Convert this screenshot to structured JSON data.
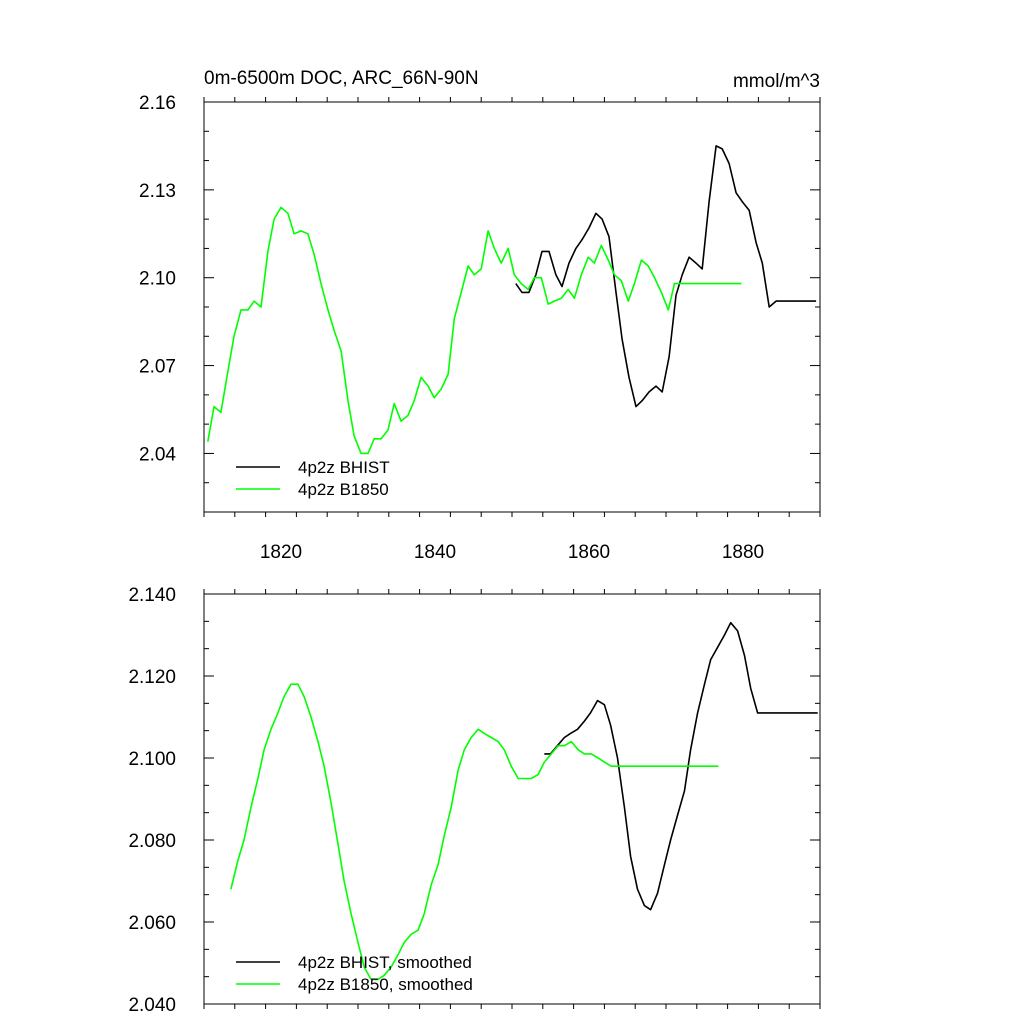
{
  "chart_data": [
    {
      "type": "line",
      "title": "0m-6500m DOC, ARC_66N-90N",
      "units": "mmol/m^3",
      "xlim": [
        1810,
        1890
      ],
      "ylim": [
        2.02,
        2.16
      ],
      "yticks": [
        2.04,
        2.07,
        2.1,
        2.13,
        2.16
      ],
      "ytick_labels": [
        "2.04",
        "2.07",
        "2.10",
        "2.13",
        "2.16"
      ],
      "xticks": [
        1820,
        1840,
        1860,
        1880
      ],
      "xtick_labels": [
        "1820",
        "1840",
        "1860",
        "1880"
      ],
      "grid": false,
      "legend_position": "bottom-left",
      "series": [
        {
          "name": "4p2z BHIST",
          "color": "#000000",
          "x": [
            1850.5,
            1851.3,
            1852.2,
            1853.1,
            1853.9,
            1854.8,
            1855.7,
            1856.5,
            1857.4,
            1858.3,
            1859.1,
            1860.0,
            1860.9,
            1861.7,
            1862.6,
            1863.5,
            1864.3,
            1865.2,
            1866.1,
            1866.9,
            1867.8,
            1868.7,
            1869.5,
            1870.4,
            1871.3,
            1872.1,
            1873.0,
            1873.9,
            1874.7,
            1875.6,
            1876.5,
            1877.3,
            1878.2,
            1879.1,
            1879.9,
            1880.8,
            1881.7,
            1882.5,
            1883.4,
            1884.3,
            1885.1,
            1886.0,
            1886.9,
            1887.7,
            1888.6,
            1889.5
          ],
          "y": [
            2.098,
            2.095,
            2.095,
            2.101,
            2.109,
            2.109,
            2.101,
            2.097,
            2.105,
            2.11,
            2.113,
            2.117,
            2.122,
            2.12,
            2.114,
            2.095,
            2.079,
            2.066,
            2.056,
            2.058,
            2.061,
            2.063,
            2.061,
            2.073,
            2.094,
            2.101,
            2.107,
            2.105,
            2.103,
            2.126,
            2.145,
            2.144,
            2.139,
            2.129,
            2.126,
            2.123,
            2.112,
            2.105,
            2.09,
            2.092,
            2.092,
            2.092,
            2.092,
            2.092,
            2.092,
            2.092
          ]
        },
        {
          "name": "4p2z B1850",
          "color": "#00ff00",
          "x": [
            1810.5,
            1811.3,
            1812.2,
            1813.1,
            1813.9,
            1814.8,
            1815.7,
            1816.5,
            1817.4,
            1818.3,
            1819.1,
            1820.0,
            1820.9,
            1821.7,
            1822.6,
            1823.5,
            1824.3,
            1825.2,
            1826.1,
            1826.9,
            1827.8,
            1828.7,
            1829.5,
            1830.4,
            1831.3,
            1832.1,
            1833.0,
            1833.9,
            1834.7,
            1835.6,
            1836.5,
            1837.3,
            1838.2,
            1839.1,
            1839.9,
            1840.8,
            1841.7,
            1842.5,
            1843.4,
            1844.3,
            1845.1,
            1846.0,
            1846.9,
            1847.7,
            1848.6,
            1849.5,
            1850.3,
            1851.2,
            1852.1,
            1852.9,
            1853.8,
            1854.7,
            1855.5,
            1856.4,
            1857.3,
            1858.1,
            1859.0,
            1859.9,
            1860.7,
            1861.6,
            1862.5,
            1863.3,
            1864.2,
            1865.1,
            1865.9,
            1866.8,
            1867.7,
            1868.5,
            1869.4,
            1870.3,
            1871.1,
            1872.0,
            1872.9,
            1873.7,
            1874.6,
            1875.5,
            1876.3,
            1877.2,
            1878.1,
            1878.9,
            1879.8
          ],
          "y": [
            2.044,
            2.056,
            2.054,
            2.068,
            2.08,
            2.089,
            2.089,
            2.092,
            2.09,
            2.109,
            2.12,
            2.124,
            2.122,
            2.115,
            2.116,
            2.115,
            2.108,
            2.098,
            2.089,
            2.082,
            2.075,
            2.058,
            2.046,
            2.04,
            2.04,
            2.045,
            2.045,
            2.048,
            2.057,
            2.051,
            2.053,
            2.058,
            2.066,
            2.063,
            2.059,
            2.062,
            2.067,
            2.086,
            2.095,
            2.104,
            2.101,
            2.103,
            2.116,
            2.11,
            2.105,
            2.11,
            2.101,
            2.098,
            2.096,
            2.1,
            2.1,
            2.091,
            2.092,
            2.093,
            2.096,
            2.093,
            2.101,
            2.107,
            2.105,
            2.111,
            2.106,
            2.101,
            2.099,
            2.092,
            2.098,
            2.106,
            2.104,
            2.1,
            2.095,
            2.089,
            2.098,
            2.098,
            2.098,
            2.098,
            2.098,
            2.098,
            2.098,
            2.098,
            2.098,
            2.098,
            2.098
          ]
        }
      ]
    },
    {
      "type": "line",
      "xlim": [
        1810,
        1890
      ],
      "ylim": [
        2.04,
        2.14
      ],
      "yticks": [
        2.04,
        2.06,
        2.08,
        2.1,
        2.12,
        2.14
      ],
      "ytick_labels": [
        "2.040",
        "2.060",
        "2.080",
        "2.100",
        "2.120",
        "2.140"
      ],
      "xticks": [
        1820,
        1840,
        1860,
        1880
      ],
      "grid": false,
      "legend_position": "bottom-left",
      "series": [
        {
          "name": "4p2z BHIST, smoothed",
          "color": "#000000",
          "x": [
            1854.2,
            1855.0,
            1855.9,
            1856.8,
            1857.6,
            1858.5,
            1859.4,
            1860.2,
            1861.1,
            1862.0,
            1862.8,
            1863.7,
            1864.6,
            1865.4,
            1866.3,
            1867.2,
            1868.0,
            1868.9,
            1869.8,
            1870.6,
            1871.5,
            1872.4,
            1873.2,
            1874.1,
            1875.0,
            1875.8,
            1876.7,
            1877.6,
            1878.4,
            1879.3,
            1880.2,
            1881.0,
            1881.9,
            1882.8,
            1883.6,
            1884.5,
            1885.4,
            1886.2,
            1887.1,
            1888.0,
            1888.8,
            1889.7
          ],
          "y": [
            2.101,
            2.101,
            2.103,
            2.105,
            2.106,
            2.107,
            2.109,
            2.111,
            2.114,
            2.113,
            2.108,
            2.1,
            2.088,
            2.076,
            2.068,
            2.064,
            2.063,
            2.067,
            2.074,
            2.08,
            2.086,
            2.092,
            2.102,
            2.111,
            2.118,
            2.124,
            2.127,
            2.13,
            2.133,
            2.131,
            2.125,
            2.117,
            2.111,
            2.111,
            2.111,
            2.111,
            2.111,
            2.111,
            2.111,
            2.111,
            2.111,
            2.111
          ]
        },
        {
          "name": "4p2z B1850, smoothed",
          "color": "#00ff00",
          "x": [
            1813.5,
            1814.4,
            1815.2,
            1816.1,
            1817.0,
            1817.8,
            1818.7,
            1819.6,
            1820.4,
            1821.3,
            1822.2,
            1823.0,
            1823.9,
            1824.8,
            1825.6,
            1826.5,
            1827.4,
            1828.2,
            1829.1,
            1830.0,
            1830.8,
            1831.7,
            1832.6,
            1833.4,
            1834.3,
            1835.2,
            1836.0,
            1836.9,
            1837.8,
            1838.6,
            1839.5,
            1840.4,
            1841.2,
            1842.1,
            1843.0,
            1843.8,
            1844.7,
            1845.6,
            1846.4,
            1847.3,
            1848.2,
            1849.0,
            1849.9,
            1850.8,
            1851.6,
            1852.5,
            1853.4,
            1854.2,
            1855.1,
            1856.0,
            1856.8,
            1857.7,
            1858.6,
            1859.4,
            1860.3,
            1861.2,
            1862.0,
            1862.9,
            1863.8,
            1864.6,
            1865.5,
            1866.4,
            1867.2,
            1868.1,
            1869.0,
            1869.8,
            1870.7,
            1871.6,
            1872.4,
            1873.3,
            1874.2,
            1875.0,
            1875.9,
            1876.8
          ],
          "y": [
            2.068,
            2.075,
            2.08,
            2.088,
            2.095,
            2.102,
            2.107,
            2.111,
            2.115,
            2.118,
            2.118,
            2.115,
            2.11,
            2.104,
            2.098,
            2.089,
            2.079,
            2.07,
            2.062,
            2.055,
            2.049,
            2.046,
            2.046,
            2.047,
            2.049,
            2.052,
            2.055,
            2.057,
            2.058,
            2.062,
            2.069,
            2.074,
            2.081,
            2.088,
            2.097,
            2.102,
            2.105,
            2.107,
            2.106,
            2.105,
            2.104,
            2.102,
            2.098,
            2.095,
            2.095,
            2.095,
            2.096,
            2.099,
            2.101,
            2.103,
            2.103,
            2.104,
            2.102,
            2.101,
            2.101,
            2.1,
            2.099,
            2.098,
            2.098,
            2.098,
            2.098,
            2.098,
            2.098,
            2.098,
            2.098,
            2.098,
            2.098,
            2.098,
            2.098,
            2.098,
            2.098,
            2.098,
            2.098,
            2.098
          ]
        }
      ]
    }
  ]
}
